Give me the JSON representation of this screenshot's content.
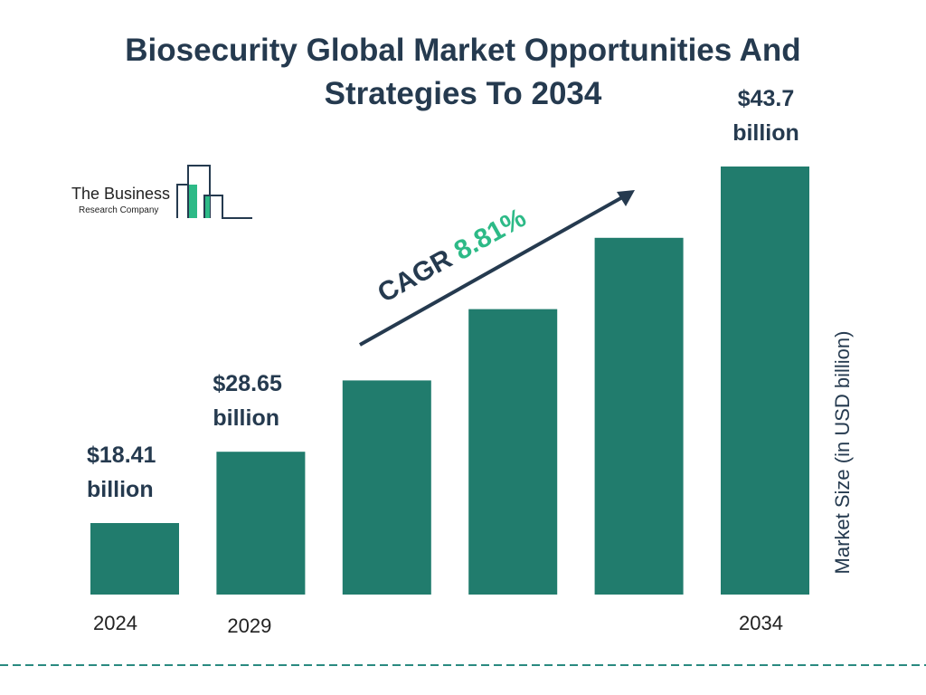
{
  "chart_data": {
    "type": "bar",
    "title": "Biosecurity Global Market Opportunities And Strategies To 2034",
    "ylabel": "Market Size (in USD billion)",
    "categories": [
      "2024",
      "2029",
      "",
      "",
      "",
      "2034"
    ],
    "values": [
      18.41,
      28.65,
      null,
      null,
      null,
      43.7
    ],
    "data_labels": [
      "$18.41 billion",
      "$28.65 billion",
      "",
      "",
      "",
      "$43.7 billion"
    ],
    "annotation": {
      "label": "CAGR",
      "value": "8.81%"
    },
    "bar_color": "#217c6d",
    "grid": false
  },
  "logo": {
    "line1": "The Business",
    "line2": "Research Company"
  },
  "colors": {
    "title": "#253a4f",
    "cagr_value": "#2dba87",
    "dashed_line": "#2a8a80"
  }
}
